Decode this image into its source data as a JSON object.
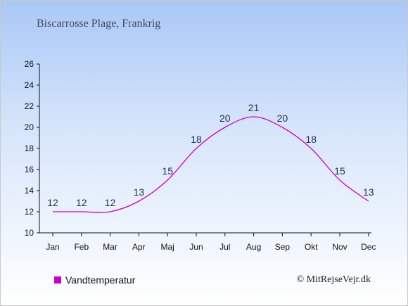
{
  "chart_data": {
    "type": "line",
    "title": "Biscarrosse Plage, Frankrig",
    "categories": [
      "Jan",
      "Feb",
      "Mar",
      "Apr",
      "Maj",
      "Jun",
      "Jul",
      "Aug",
      "Sep",
      "Okt",
      "Nov",
      "Dec"
    ],
    "series": [
      {
        "name": "Vandtemperatur",
        "values": [
          12,
          12,
          12,
          13,
          15,
          18,
          20,
          21,
          20,
          18,
          15,
          13
        ],
        "color": "#cc00cc"
      }
    ],
    "ylim": [
      10,
      26
    ],
    "yticks": [
      10,
      12,
      14,
      16,
      18,
      20,
      22,
      24,
      26
    ],
    "legend_position": "bottom-left",
    "grid": false
  },
  "copyright": "© MitRejseVejr.dk"
}
